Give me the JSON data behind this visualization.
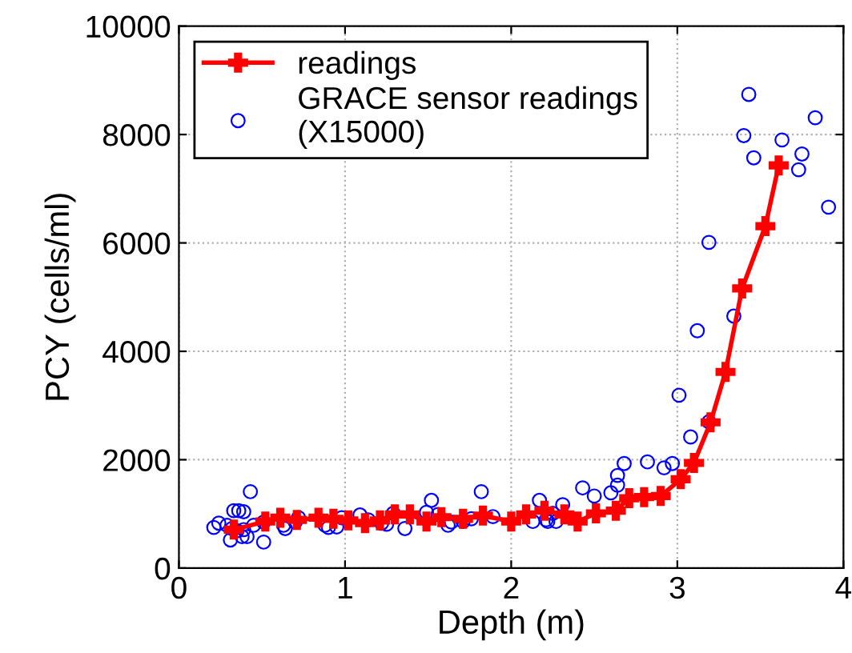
{
  "chart_data": {
    "type": "line",
    "xlabel": "Depth (m)",
    "ylabel": "PCY (cells/ml)",
    "xlim": [
      0,
      4
    ],
    "xticks": [
      0,
      1,
      2,
      3,
      4
    ],
    "ylim": [
      0,
      10000
    ],
    "yticks": [
      0,
      2000,
      4000,
      6000,
      8000,
      10000
    ],
    "grid": true,
    "legend": "top left",
    "line_style": "solid",
    "series": [
      {
        "name": "readings",
        "marker": "cross",
        "color": "#ff0000",
        "x": [
          0.33,
          0.52,
          0.61,
          0.71,
          0.84,
          0.93,
          1.02,
          1.12,
          1.21,
          1.3,
          1.39,
          1.49,
          1.58,
          1.71,
          1.83,
          2.0,
          2.09,
          2.2,
          2.32,
          2.4,
          2.51,
          2.63,
          2.71,
          2.8,
          2.9,
          3.02,
          3.1,
          3.2,
          3.29,
          3.39,
          3.53,
          3.61
        ],
        "values": [
          710,
          860,
          930,
          890,
          930,
          910,
          880,
          830,
          880,
          990,
          990,
          860,
          940,
          910,
          970,
          860,
          990,
          1060,
          990,
          860,
          1010,
          1060,
          1290,
          1310,
          1330,
          1640,
          1940,
          2690,
          3620,
          5160,
          6310,
          7430
        ]
      },
      {
        "name": "GRACE sensor readings\n(X15000)",
        "type": "scatter",
        "marker": "circle",
        "color": "#0000ff",
        "x": [
          0.21,
          0.24,
          0.29,
          0.31,
          0.33,
          0.36,
          0.39,
          0.43,
          0.32,
          0.35,
          0.39,
          0.41,
          0.38,
          0.45,
          0.51,
          0.51,
          0.63,
          0.64,
          0.7,
          0.72,
          0.88,
          0.9,
          0.95,
          0.98,
          1.09,
          1.14,
          1.22,
          1.25,
          1.29,
          1.36,
          1.49,
          1.52,
          1.56,
          1.62,
          1.64,
          1.71,
          1.76,
          1.82,
          1.89,
          2.13,
          2.17,
          2.21,
          2.22,
          2.25,
          2.27,
          2.31,
          2.43,
          2.5,
          2.6,
          2.64,
          2.64,
          2.68,
          2.82,
          2.92,
          2.97,
          3.01,
          3.08,
          3.12,
          3.19,
          3.19,
          3.34,
          3.4,
          3.43,
          3.46,
          3.63,
          3.73,
          3.75,
          3.83,
          3.91
        ],
        "values": [
          750,
          830,
          790,
          520,
          1060,
          1060,
          1040,
          1410,
          730,
          690,
          710,
          580,
          580,
          790,
          480,
          850,
          790,
          730,
          850,
          930,
          790,
          750,
          760,
          930,
          980,
          890,
          830,
          810,
          1010,
          730,
          1030,
          1250,
          990,
          790,
          850,
          860,
          910,
          1410,
          950,
          860,
          1250,
          890,
          860,
          1010,
          860,
          1170,
          1480,
          1330,
          1390,
          1530,
          1710,
          1930,
          1960,
          1850,
          1930,
          3190,
          2420,
          4380,
          6010,
          2700,
          4650,
          7980,
          8740,
          7570,
          7900,
          7350,
          7640,
          8310,
          6660
        ]
      }
    ]
  }
}
